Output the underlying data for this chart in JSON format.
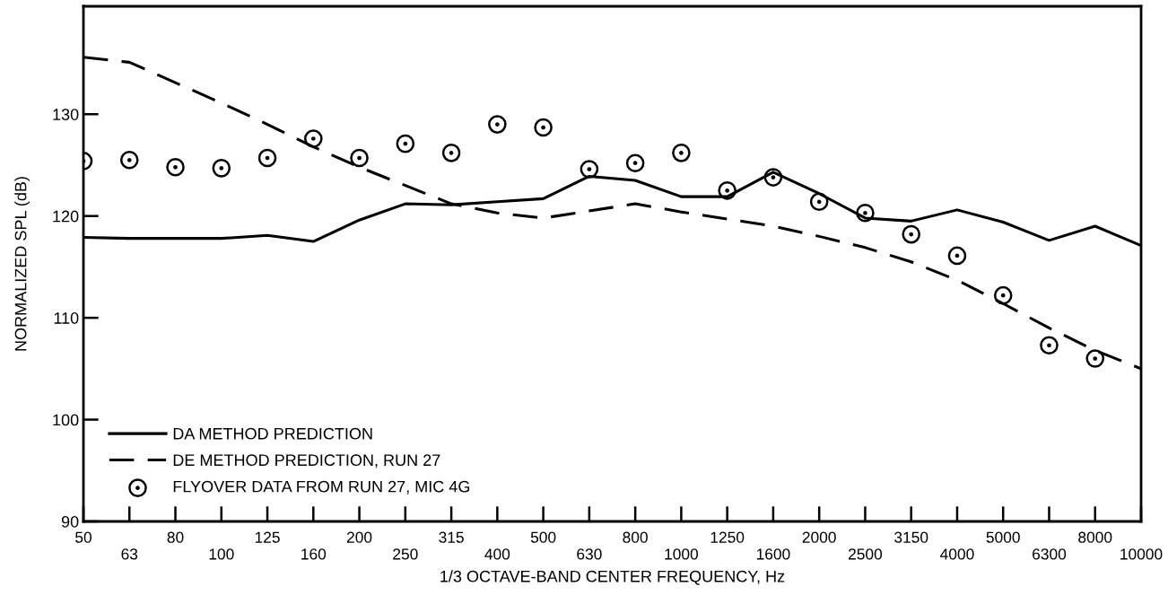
{
  "chart_data": {
    "type": "line",
    "xlabel": "1/3 OCTAVE-BAND CENTER FREQUENCY, Hz",
    "ylabel": "NORMALIZED SPL (dB)",
    "categories": [
      "50",
      "63",
      "80",
      "100",
      "125",
      "160",
      "200",
      "250",
      "315",
      "400",
      "500",
      "630",
      "800",
      "1000",
      "1250",
      "1600",
      "2000",
      "2500",
      "3150",
      "4000",
      "5000",
      "6300",
      "8000",
      "10000"
    ],
    "series": [
      {
        "name": "DA METHOD PREDICTION",
        "color": "#000000",
        "line_style": "solid",
        "marker": "none",
        "values": [
          117.9,
          117.8,
          117.8,
          117.8,
          118.1,
          117.5,
          119.6,
          121.2,
          121.1,
          121.4,
          121.7,
          123.9,
          123.5,
          121.9,
          121.9,
          124.3,
          122.2,
          119.8,
          119.5,
          120.6,
          119.4,
          117.6,
          119.0,
          117.1
        ]
      },
      {
        "name": "DE METHOD PREDICTION, RUN 27",
        "color": "#000000",
        "line_style": "dashed",
        "marker": "none",
        "values": [
          135.6,
          135.1,
          133.1,
          131.1,
          129.0,
          126.8,
          124.8,
          123.0,
          121.2,
          120.3,
          119.8,
          120.5,
          121.2,
          120.4,
          119.7,
          119.0,
          118.0,
          116.9,
          115.5,
          113.7,
          111.4,
          109.0,
          106.8,
          105.0
        ]
      },
      {
        "name": "FLYOVER DATA FROM RUN 27, MIC 4G",
        "type": "scatter",
        "color": "#000000",
        "marker": "circle",
        "values": [
          125.4,
          125.5,
          124.8,
          124.7,
          125.7,
          127.6,
          125.7,
          127.1,
          126.2,
          129.0,
          128.7,
          124.6,
          125.2,
          126.2,
          122.5,
          123.8,
          121.4,
          120.3,
          118.2,
          116.1,
          112.2,
          107.3,
          106.0,
          null
        ]
      }
    ],
    "ylim": [
      90,
      140.6
    ],
    "yticks": [
      90,
      100,
      110,
      120,
      130
    ],
    "grid": false,
    "legend": "bottom left"
  }
}
